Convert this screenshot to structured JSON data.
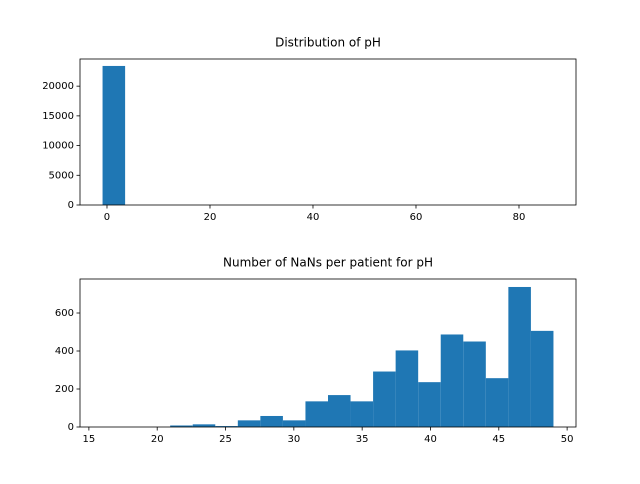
{
  "chart_data": [
    {
      "type": "histogram",
      "title": "Distribution of pH",
      "color": "#1f77b4",
      "bins": [
        -0.86,
        3.52,
        7.89,
        12.27,
        16.65,
        21.03,
        25.4,
        29.78,
        34.16,
        38.53,
        42.91,
        47.29,
        51.66,
        56.04,
        60.42,
        64.8,
        69.17,
        73.55,
        77.93,
        82.3,
        86.68
      ],
      "values": [
        23400,
        0,
        0,
        0,
        0,
        0,
        0,
        0,
        0,
        0,
        0,
        0,
        0,
        0,
        0,
        0,
        0,
        0,
        0,
        0
      ],
      "xlim": [
        -5.24,
        91.07
      ],
      "xticks": [
        0,
        20,
        40,
        60,
        80
      ],
      "ylim": [
        0,
        24570
      ],
      "yticks": [
        0,
        5000,
        10000,
        15000,
        20000
      ]
    },
    {
      "type": "histogram",
      "title": "Number of NaNs per patient for pH",
      "color": "#1f77b4",
      "bins": [
        16,
        17.65,
        19.3,
        20.95,
        22.6,
        24.25,
        25.9,
        27.55,
        29.2,
        30.85,
        32.5,
        34.15,
        35.8,
        37.45,
        39.1,
        40.75,
        42.4,
        44.05,
        45.7,
        47.35,
        49
      ],
      "values": [
        0,
        0,
        0,
        8,
        14,
        5,
        35,
        58,
        35,
        135,
        168,
        135,
        292,
        403,
        236,
        487,
        450,
        257,
        737,
        506
      ],
      "xlim": [
        14.35,
        50.65
      ],
      "xticks": [
        15,
        20,
        25,
        30,
        35,
        40,
        45,
        50
      ],
      "ylim": [
        0,
        779
      ],
      "yticks": [
        0,
        200,
        400,
        600
      ]
    }
  ]
}
